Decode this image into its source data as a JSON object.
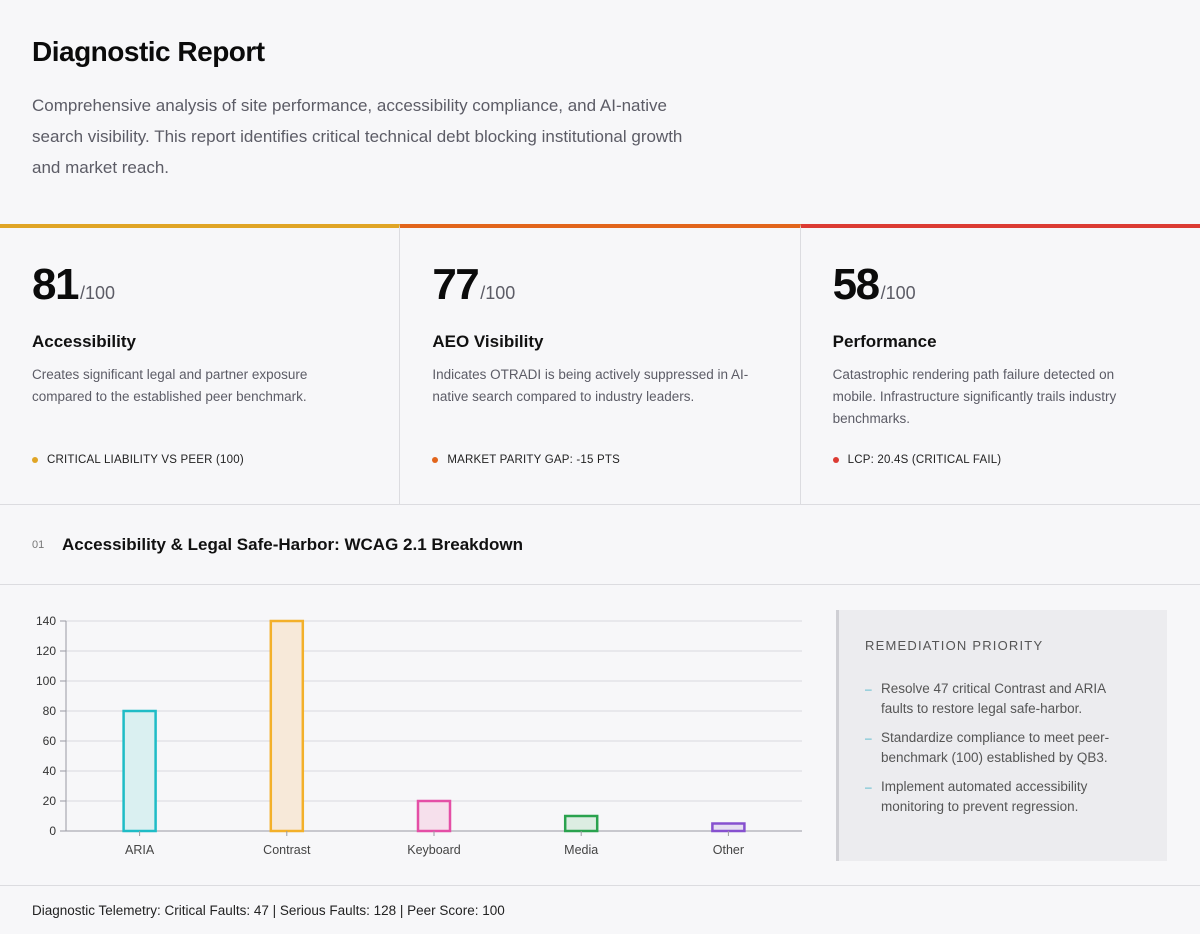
{
  "header": {
    "title": "Diagnostic Report",
    "intro": "Comprehensive analysis of site performance, accessibility compliance, and AI-native search visibility. This report identifies critical technical debt blocking institutional growth and market reach."
  },
  "cards": [
    {
      "score": "81",
      "max": "/100",
      "title": "Accessibility",
      "desc": "Creates significant legal and partner exposure compared to the established peer benchmark.",
      "tag": "CRITICAL LIABILITY VS PEER (100)",
      "accent": "#e0a526"
    },
    {
      "score": "77",
      "max": "/100",
      "title": "AEO Visibility",
      "desc": "Indicates OTRADI is being actively suppressed in AI-native search compared to industry leaders.",
      "tag": "MARKET PARITY GAP: -15 PTS",
      "accent": "#e2651c"
    },
    {
      "score": "58",
      "max": "/100",
      "title": "Performance",
      "desc": "Catastrophic rendering path failure detected on mobile. Infrastructure significantly trails industry benchmarks.",
      "tag": "LCP: 20.4S (CRITICAL FAIL)",
      "accent": "#dc3b33"
    }
  ],
  "section": {
    "number": "01",
    "title": "Accessibility & Legal Safe-Harbor: WCAG 2.1 Breakdown"
  },
  "chart_data": {
    "type": "bar",
    "categories": [
      "ARIA",
      "Contrast",
      "Keyboard",
      "Media",
      "Other"
    ],
    "values": [
      80,
      140,
      20,
      10,
      5
    ],
    "ylim": [
      0,
      140
    ],
    "yticks": [
      0,
      20,
      40,
      60,
      80,
      100,
      120,
      140
    ],
    "grid": true,
    "colors": [
      {
        "stroke": "#1fbcc6",
        "fill": "#daf0f1"
      },
      {
        "stroke": "#f3b02a",
        "fill": "#f7e9d9"
      },
      {
        "stroke": "#e44fa6",
        "fill": "#f6e0ec"
      },
      {
        "stroke": "#2aa24e",
        "fill": "#dcede2"
      },
      {
        "stroke": "#8650cf",
        "fill": "#e6dff2"
      }
    ]
  },
  "remediation": {
    "title": "REMEDIATION PRIORITY",
    "items": [
      "Resolve 47 critical Contrast and ARIA faults to restore legal safe-harbor.",
      "Standardize compliance to meet peer-benchmark (100) established by QB3.",
      "Implement automated accessibility monitoring to prevent regression."
    ]
  },
  "footer": {
    "text": "Diagnostic Telemetry: Critical Faults: 47 | Serious Faults: 128 | Peer Score: 100"
  }
}
